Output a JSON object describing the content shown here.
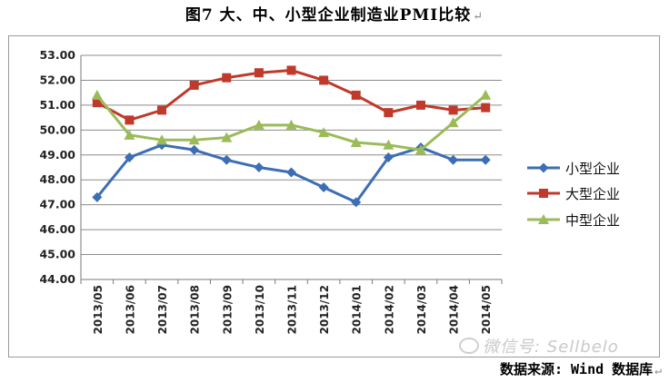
{
  "title": "图7  大、中、小型企业制造业PMI比较",
  "return_mark": "↵",
  "source": "数据来源: Wind 数据库",
  "watermark": "微信号: Sellbelo",
  "chart_data": {
    "type": "line",
    "categories": [
      "2013/05",
      "2013/06",
      "2013/07",
      "2013/08",
      "2013/09",
      "2013/10",
      "2013/11",
      "2013/12",
      "2014/01",
      "2014/02",
      "2014/03",
      "2014/04",
      "2014/05"
    ],
    "ylim": [
      44,
      53
    ],
    "yticks": [
      "44.00",
      "45.00",
      "46.00",
      "47.00",
      "48.00",
      "49.00",
      "50.00",
      "51.00",
      "52.00",
      "53.00"
    ],
    "grid": true,
    "legend_position": "right",
    "series": [
      {
        "name": "小型企业",
        "marker": "diamond",
        "color": "#3C6EB4",
        "values": [
          47.3,
          48.9,
          49.4,
          49.2,
          48.8,
          48.5,
          48.3,
          47.7,
          47.1,
          48.9,
          49.3,
          48.8,
          48.8
        ]
      },
      {
        "name": "大型企业",
        "marker": "square",
        "color": "#C0392B",
        "values": [
          51.1,
          50.4,
          50.8,
          51.8,
          52.1,
          52.3,
          52.4,
          52.0,
          51.4,
          50.7,
          51.0,
          50.8,
          50.9
        ]
      },
      {
        "name": "中型企业",
        "marker": "triangle",
        "color": "#9BBB59",
        "values": [
          51.4,
          49.8,
          49.6,
          49.6,
          49.7,
          50.2,
          50.2,
          49.9,
          49.5,
          49.4,
          49.2,
          50.3,
          51.4
        ]
      }
    ]
  }
}
